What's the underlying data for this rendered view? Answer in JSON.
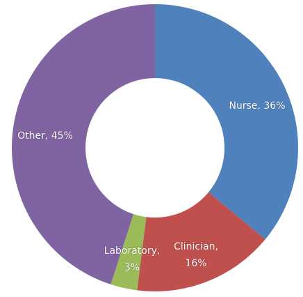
{
  "chart_data": {
    "type": "donut",
    "values": [
      36,
      16,
      3,
      45
    ],
    "value_labels": [
      "Nurse, 36%",
      "Clinician, 16%",
      "Laboratory, 3%",
      "Other, 45%"
    ],
    "colors": [
      "#4f81bd",
      "#c0504d",
      "#9bbb59",
      "#8064a2"
    ]
  }
}
